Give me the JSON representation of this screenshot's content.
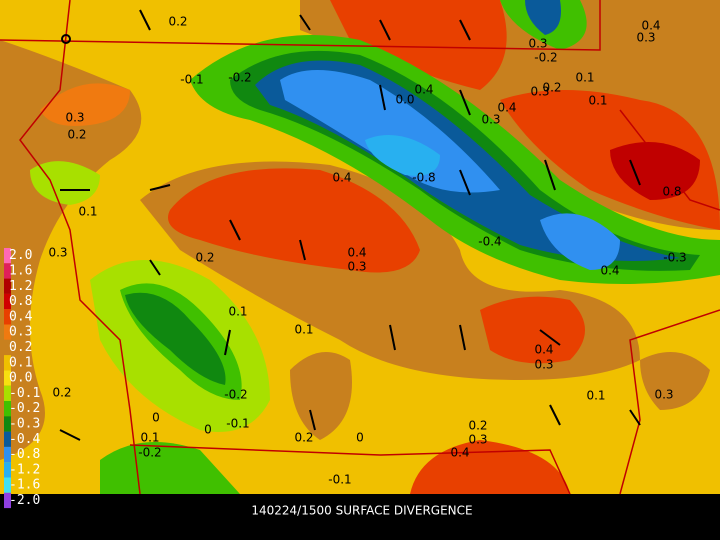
{
  "title": "140224/1500 SURFACE DIVERGENCE",
  "legend": [
    {
      "label": "2.0",
      "color": "#ff69b4"
    },
    {
      "label": "1.6",
      "color": "#e0205a"
    },
    {
      "label": "1.2",
      "color": "#b00000"
    },
    {
      "label": "0.8",
      "color": "#d00000"
    },
    {
      "label": "0.4",
      "color": "#e84000"
    },
    {
      "label": "0.3",
      "color": "#f07a10"
    },
    {
      "label": "0.2",
      "color": "#c8801e"
    },
    {
      "label": "0.1",
      "color": "#f0c000"
    },
    {
      "label": "0.0",
      "color": "#f8e010"
    },
    {
      "label": "-0.1",
      "color": "#a8e000"
    },
    {
      "label": "-0.2",
      "color": "#40c000"
    },
    {
      "label": "-0.3",
      "color": "#108810"
    },
    {
      "label": "-0.4",
      "color": "#0a5a9a"
    },
    {
      "label": "-0.8",
      "color": "#3090f0"
    },
    {
      "label": "-1.2",
      "color": "#28b0f0"
    },
    {
      "label": "-1.6",
      "color": "#40e0f0"
    },
    {
      "label": "-2.0",
      "color": "#9040e0"
    }
  ],
  "contour_labels": [
    "0.2",
    "0.4",
    "0.3",
    "0.3",
    "-0.2",
    "-0.1",
    "-0.2",
    "0.4",
    "0.1",
    "0.2",
    "0.3",
    "0.1",
    "0.0",
    "0.4",
    "0.3",
    "0.3",
    "0.2",
    "-0.8",
    "0.4",
    "0.8",
    "0.1",
    "-0.4",
    "0.3",
    "0.2",
    "0.4",
    "0.3",
    "0.4",
    "-0.3",
    "0.1",
    "0.1",
    "0.4",
    "0.3",
    "-0.2",
    "0.1",
    "0.3",
    "0.2",
    "-0.1",
    "0",
    "0",
    "0.1",
    "-0.2",
    "0.2",
    "0",
    "0.2",
    "0.3",
    "0.4",
    "-0.1"
  ]
}
